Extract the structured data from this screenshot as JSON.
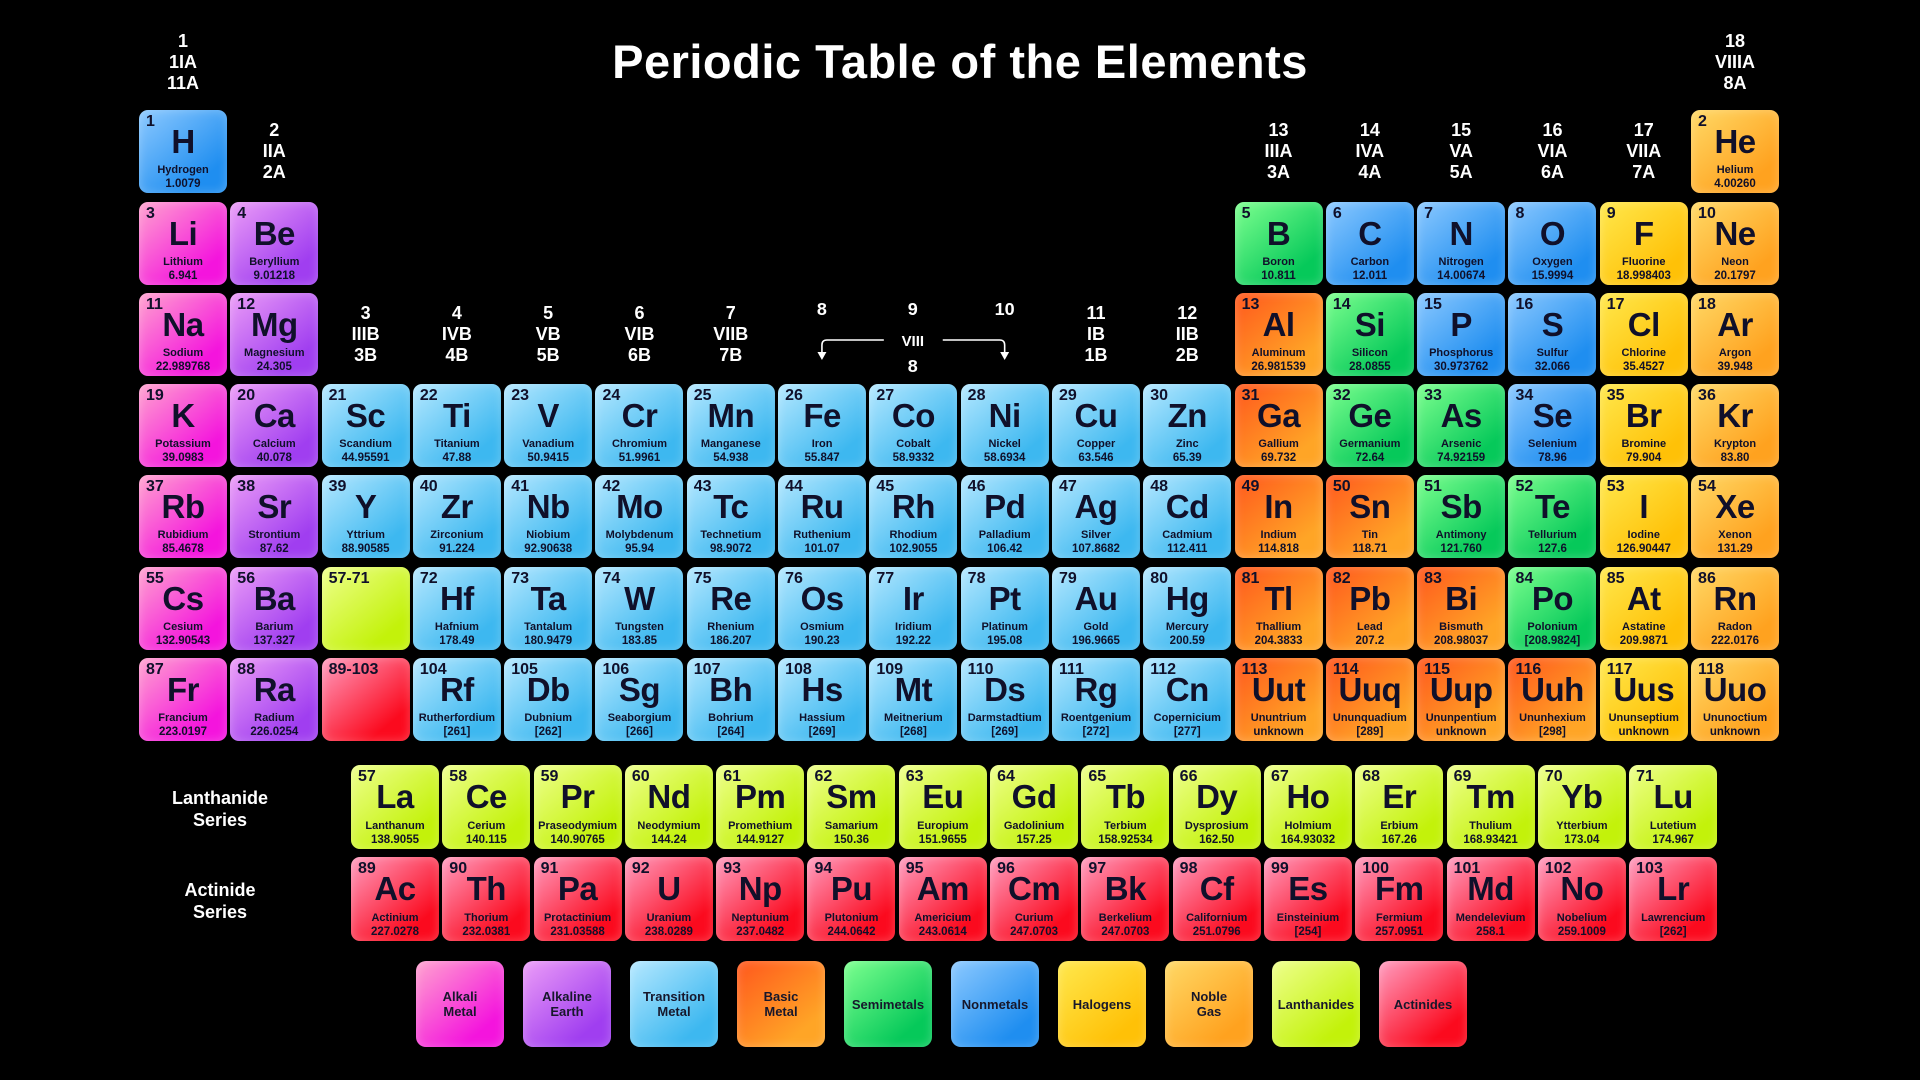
{
  "title": "Periodic Table of the Elements",
  "series_labels": {
    "lanthanide": "Lanthanide\nSeries",
    "actinide": "Actinide\nSeries"
  },
  "bracket": {
    "n8": "8",
    "n9": "9",
    "n10": "10",
    "label": "VIII",
    "sub": "8"
  },
  "category_colors": {
    "alkali": [
      "#ffa3cf",
      "#f414dd"
    ],
    "alkaline": [
      "#ec9df7",
      "#a03ef0"
    ],
    "transition": [
      "#b5e8ff",
      "#3db8f0"
    ],
    "basic": [
      "#ff571d",
      "#ffa526"
    ],
    "semimetal": [
      "#7dff8f",
      "#06c95a"
    ],
    "nonmetal": [
      "#8cc9ff",
      "#1f8ef0"
    ],
    "halogen": [
      "#ffe84d",
      "#ffc107"
    ],
    "noble": [
      "#ffd966",
      "#ffa21f"
    ],
    "lanthanide": [
      "#eeff8c",
      "#c3f20a"
    ],
    "actinide": [
      "#ff9dc0",
      "#fb0a1e"
    ]
  },
  "group_headers": [
    {
      "col": 1,
      "grow": 1,
      "lines": "1\n1IA\n11A"
    },
    {
      "col": 18,
      "grow": 1,
      "lines": "18\nVIIIA\n8A"
    },
    {
      "col": 2,
      "grow": 2,
      "lines": "2\nIIA\n2A"
    },
    {
      "col": 13,
      "grow": 2,
      "lines": "13\nIIIA\n3A"
    },
    {
      "col": 14,
      "grow": 2,
      "lines": "14\nIVA\n4A"
    },
    {
      "col": 15,
      "grow": 2,
      "lines": "15\nVA\n5A"
    },
    {
      "col": 16,
      "grow": 2,
      "lines": "16\nVIA\n6A"
    },
    {
      "col": 17,
      "grow": 2,
      "lines": "17\nVIIA\n7A"
    },
    {
      "col": 3,
      "grow": 4,
      "lines": "3\nIIIB\n3B"
    },
    {
      "col": 4,
      "grow": 4,
      "lines": "4\nIVB\n4B"
    },
    {
      "col": 5,
      "grow": 4,
      "lines": "5\nVB\n5B"
    },
    {
      "col": 6,
      "grow": 4,
      "lines": "6\nVIB\n6B"
    },
    {
      "col": 7,
      "grow": 4,
      "lines": "7\nVIIB\n7B"
    },
    {
      "col": 11,
      "grow": 4,
      "lines": "11\nIB\n1B"
    },
    {
      "col": 12,
      "grow": 4,
      "lines": "12\nIIB\n2B"
    }
  ],
  "elements": [
    [
      1,
      "H",
      "Hydrogen",
      "1.0079",
      1,
      1,
      "nonmetal"
    ],
    [
      2,
      "He",
      "Helium",
      "4.00260",
      1,
      18,
      "noble"
    ],
    [
      3,
      "Li",
      "Lithium",
      "6.941",
      2,
      1,
      "alkali"
    ],
    [
      4,
      "Be",
      "Beryllium",
      "9.01218",
      2,
      2,
      "alkaline"
    ],
    [
      5,
      "B",
      "Boron",
      "10.811",
      2,
      13,
      "semimetal"
    ],
    [
      6,
      "C",
      "Carbon",
      "12.011",
      2,
      14,
      "nonmetal"
    ],
    [
      7,
      "N",
      "Nitrogen",
      "14.00674",
      2,
      15,
      "nonmetal"
    ],
    [
      8,
      "O",
      "Oxygen",
      "15.9994",
      2,
      16,
      "nonmetal"
    ],
    [
      9,
      "F",
      "Fluorine",
      "18.998403",
      2,
      17,
      "halogen"
    ],
    [
      10,
      "Ne",
      "Neon",
      "20.1797",
      2,
      18,
      "noble"
    ],
    [
      11,
      "Na",
      "Sodium",
      "22.989768",
      3,
      1,
      "alkali"
    ],
    [
      12,
      "Mg",
      "Magnesium",
      "24.305",
      3,
      2,
      "alkaline"
    ],
    [
      13,
      "Al",
      "Aluminum",
      "26.981539",
      3,
      13,
      "basic"
    ],
    [
      14,
      "Si",
      "Silicon",
      "28.0855",
      3,
      14,
      "semimetal"
    ],
    [
      15,
      "P",
      "Phosphorus",
      "30.973762",
      3,
      15,
      "nonmetal"
    ],
    [
      16,
      "S",
      "Sulfur",
      "32.066",
      3,
      16,
      "nonmetal"
    ],
    [
      17,
      "Cl",
      "Chlorine",
      "35.4527",
      3,
      17,
      "halogen"
    ],
    [
      18,
      "Ar",
      "Argon",
      "39.948",
      3,
      18,
      "noble"
    ],
    [
      19,
      "K",
      "Potassium",
      "39.0983",
      4,
      1,
      "alkali"
    ],
    [
      20,
      "Ca",
      "Calcium",
      "40.078",
      4,
      2,
      "alkaline"
    ],
    [
      21,
      "Sc",
      "Scandium",
      "44.95591",
      4,
      3,
      "transition"
    ],
    [
      22,
      "Ti",
      "Titanium",
      "47.88",
      4,
      4,
      "transition"
    ],
    [
      23,
      "V",
      "Vanadium",
      "50.9415",
      4,
      5,
      "transition"
    ],
    [
      24,
      "Cr",
      "Chromium",
      "51.9961",
      4,
      6,
      "transition"
    ],
    [
      25,
      "Mn",
      "Manganese",
      "54.938",
      4,
      7,
      "transition"
    ],
    [
      26,
      "Fe",
      "Iron",
      "55.847",
      4,
      8,
      "transition"
    ],
    [
      27,
      "Co",
      "Cobalt",
      "58.9332",
      4,
      9,
      "transition"
    ],
    [
      28,
      "Ni",
      "Nickel",
      "58.6934",
      4,
      10,
      "transition"
    ],
    [
      29,
      "Cu",
      "Copper",
      "63.546",
      4,
      11,
      "transition"
    ],
    [
      30,
      "Zn",
      "Zinc",
      "65.39",
      4,
      12,
      "transition"
    ],
    [
      31,
      "Ga",
      "Gallium",
      "69.732",
      4,
      13,
      "basic"
    ],
    [
      32,
      "Ge",
      "Germanium",
      "72.64",
      4,
      14,
      "semimetal"
    ],
    [
      33,
      "As",
      "Arsenic",
      "74.92159",
      4,
      15,
      "semimetal"
    ],
    [
      34,
      "Se",
      "Selenium",
      "78.96",
      4,
      16,
      "nonmetal"
    ],
    [
      35,
      "Br",
      "Bromine",
      "79.904",
      4,
      17,
      "halogen"
    ],
    [
      36,
      "Kr",
      "Krypton",
      "83.80",
      4,
      18,
      "noble"
    ],
    [
      37,
      "Rb",
      "Rubidium",
      "85.4678",
      5,
      1,
      "alkali"
    ],
    [
      38,
      "Sr",
      "Strontium",
      "87.62",
      5,
      2,
      "alkaline"
    ],
    [
      39,
      "Y",
      "Yttrium",
      "88.90585",
      5,
      3,
      "transition"
    ],
    [
      40,
      "Zr",
      "Zirconium",
      "91.224",
      5,
      4,
      "transition"
    ],
    [
      41,
      "Nb",
      "Niobium",
      "92.90638",
      5,
      5,
      "transition"
    ],
    [
      42,
      "Mo",
      "Molybdenum",
      "95.94",
      5,
      6,
      "transition"
    ],
    [
      43,
      "Tc",
      "Technetium",
      "98.9072",
      5,
      7,
      "transition"
    ],
    [
      44,
      "Ru",
      "Ruthenium",
      "101.07",
      5,
      8,
      "transition"
    ],
    [
      45,
      "Rh",
      "Rhodium",
      "102.9055",
      5,
      9,
      "transition"
    ],
    [
      46,
      "Pd",
      "Palladium",
      "106.42",
      5,
      10,
      "transition"
    ],
    [
      47,
      "Ag",
      "Silver",
      "107.8682",
      5,
      11,
      "transition"
    ],
    [
      48,
      "Cd",
      "Cadmium",
      "112.411",
      5,
      12,
      "transition"
    ],
    [
      49,
      "In",
      "Indium",
      "114.818",
      5,
      13,
      "basic"
    ],
    [
      50,
      "Sn",
      "Tin",
      "118.71",
      5,
      14,
      "basic"
    ],
    [
      51,
      "Sb",
      "Antimony",
      "121.760",
      5,
      15,
      "semimetal"
    ],
    [
      52,
      "Te",
      "Tellurium",
      "127.6",
      5,
      16,
      "semimetal"
    ],
    [
      53,
      "I",
      "Iodine",
      "126.90447",
      5,
      17,
      "halogen"
    ],
    [
      54,
      "Xe",
      "Xenon",
      "131.29",
      5,
      18,
      "noble"
    ],
    [
      55,
      "Cs",
      "Cesium",
      "132.90543",
      6,
      1,
      "alkali"
    ],
    [
      56,
      "Ba",
      "Barium",
      "137.327",
      6,
      2,
      "alkaline"
    ],
    [
      "57-71",
      "",
      "",
      "",
      6,
      3,
      "lanthanide"
    ],
    [
      72,
      "Hf",
      "Hafnium",
      "178.49",
      6,
      4,
      "transition"
    ],
    [
      73,
      "Ta",
      "Tantalum",
      "180.9479",
      6,
      5,
      "transition"
    ],
    [
      74,
      "W",
      "Tungsten",
      "183.85",
      6,
      6,
      "transition"
    ],
    [
      75,
      "Re",
      "Rhenium",
      "186.207",
      6,
      7,
      "transition"
    ],
    [
      76,
      "Os",
      "Osmium",
      "190.23",
      6,
      8,
      "transition"
    ],
    [
      77,
      "Ir",
      "Iridium",
      "192.22",
      6,
      9,
      "transition"
    ],
    [
      78,
      "Pt",
      "Platinum",
      "195.08",
      6,
      10,
      "transition"
    ],
    [
      79,
      "Au",
      "Gold",
      "196.9665",
      6,
      11,
      "transition"
    ],
    [
      80,
      "Hg",
      "Mercury",
      "200.59",
      6,
      12,
      "transition"
    ],
    [
      81,
      "Tl",
      "Thallium",
      "204.3833",
      6,
      13,
      "basic"
    ],
    [
      82,
      "Pb",
      "Lead",
      "207.2",
      6,
      14,
      "basic"
    ],
    [
      83,
      "Bi",
      "Bismuth",
      "208.98037",
      6,
      15,
      "basic"
    ],
    [
      84,
      "Po",
      "Polonium",
      "[208.9824]",
      6,
      16,
      "semimetal"
    ],
    [
      85,
      "At",
      "Astatine",
      "209.9871",
      6,
      17,
      "halogen"
    ],
    [
      86,
      "Rn",
      "Radon",
      "222.0176",
      6,
      18,
      "noble"
    ],
    [
      87,
      "Fr",
      "Francium",
      "223.0197",
      7,
      1,
      "alkali"
    ],
    [
      88,
      "Ra",
      "Radium",
      "226.0254",
      7,
      2,
      "alkaline"
    ],
    [
      "89-103",
      "",
      "",
      "",
      7,
      3,
      "actinide"
    ],
    [
      104,
      "Rf",
      "Rutherfordium",
      "[261]",
      7,
      4,
      "transition"
    ],
    [
      105,
      "Db",
      "Dubnium",
      "[262]",
      7,
      5,
      "transition"
    ],
    [
      106,
      "Sg",
      "Seaborgium",
      "[266]",
      7,
      6,
      "transition"
    ],
    [
      107,
      "Bh",
      "Bohrium",
      "[264]",
      7,
      7,
      "transition"
    ],
    [
      108,
      "Hs",
      "Hassium",
      "[269]",
      7,
      8,
      "transition"
    ],
    [
      109,
      "Mt",
      "Meitnerium",
      "[268]",
      7,
      9,
      "transition"
    ],
    [
      110,
      "Ds",
      "Darmstadtium",
      "[269]",
      7,
      10,
      "transition"
    ],
    [
      111,
      "Rg",
      "Roentgenium",
      "[272]",
      7,
      11,
      "transition"
    ],
    [
      112,
      "Cn",
      "Copernicium",
      "[277]",
      7,
      12,
      "transition"
    ],
    [
      113,
      "Uut",
      "Ununtrium",
      "unknown",
      7,
      13,
      "basic"
    ],
    [
      114,
      "Uuq",
      "Ununquadium",
      "[289]",
      7,
      14,
      "basic"
    ],
    [
      115,
      "Uup",
      "Ununpentium",
      "unknown",
      7,
      15,
      "basic"
    ],
    [
      116,
      "Uuh",
      "Ununhexium",
      "[298]",
      7,
      16,
      "basic"
    ],
    [
      117,
      "Uus",
      "Ununseptium",
      "unknown",
      7,
      17,
      "halogen"
    ],
    [
      118,
      "Uuo",
      "Ununoctium",
      "unknown",
      7,
      18,
      "noble"
    ]
  ],
  "lanthanide_series": [
    [
      57,
      "La",
      "Lanthanum",
      "138.9055"
    ],
    [
      58,
      "Ce",
      "Cerium",
      "140.115"
    ],
    [
      59,
      "Pr",
      "Praseodymium",
      "140.90765"
    ],
    [
      60,
      "Nd",
      "Neodymium",
      "144.24"
    ],
    [
      61,
      "Pm",
      "Promethium",
      "144.9127"
    ],
    [
      62,
      "Sm",
      "Samarium",
      "150.36"
    ],
    [
      63,
      "Eu",
      "Europium",
      "151.9655"
    ],
    [
      64,
      "Gd",
      "Gadolinium",
      "157.25"
    ],
    [
      65,
      "Tb",
      "Terbium",
      "158.92534"
    ],
    [
      66,
      "Dy",
      "Dysprosium",
      "162.50"
    ],
    [
      67,
      "Ho",
      "Holmium",
      "164.93032"
    ],
    [
      68,
      "Er",
      "Erbium",
      "167.26"
    ],
    [
      69,
      "Tm",
      "Thulium",
      "168.93421"
    ],
    [
      70,
      "Yb",
      "Ytterbium",
      "173.04"
    ],
    [
      71,
      "Lu",
      "Lutetium",
      "174.967"
    ]
  ],
  "actinide_series": [
    [
      89,
      "Ac",
      "Actinium",
      "227.0278"
    ],
    [
      90,
      "Th",
      "Thorium",
      "232.0381"
    ],
    [
      91,
      "Pa",
      "Protactinium",
      "231.03588"
    ],
    [
      92,
      "U",
      "Uranium",
      "238.0289"
    ],
    [
      93,
      "Np",
      "Neptunium",
      "237.0482"
    ],
    [
      94,
      "Pu",
      "Plutonium",
      "244.0642"
    ],
    [
      95,
      "Am",
      "Americium",
      "243.0614"
    ],
    [
      96,
      "Cm",
      "Curium",
      "247.0703"
    ],
    [
      97,
      "Bk",
      "Berkelium",
      "247.0703"
    ],
    [
      98,
      "Cf",
      "Californium",
      "251.0796"
    ],
    [
      99,
      "Es",
      "Einsteinium",
      "[254]"
    ],
    [
      100,
      "Fm",
      "Fermium",
      "257.0951"
    ],
    [
      101,
      "Md",
      "Mendelevium",
      "258.1"
    ],
    [
      102,
      "No",
      "Nobelium",
      "259.1009"
    ],
    [
      103,
      "Lr",
      "Lawrencium",
      "[262]"
    ]
  ],
  "legend": [
    {
      "key": "alkali",
      "label": "Alkali\nMetal"
    },
    {
      "key": "alkaline",
      "label": "Alkaline\nEarth"
    },
    {
      "key": "transition",
      "label": "Transition\nMetal"
    },
    {
      "key": "basic",
      "label": "Basic\nMetal"
    },
    {
      "key": "semimetal",
      "label": "Semimetals"
    },
    {
      "key": "nonmetal",
      "label": "Nonmetals"
    },
    {
      "key": "halogen",
      "label": "Halogens"
    },
    {
      "key": "noble",
      "label": "Noble\nGas"
    },
    {
      "key": "lanthanide",
      "label": "Lanthanides"
    },
    {
      "key": "actinide",
      "label": "Actinides"
    }
  ]
}
